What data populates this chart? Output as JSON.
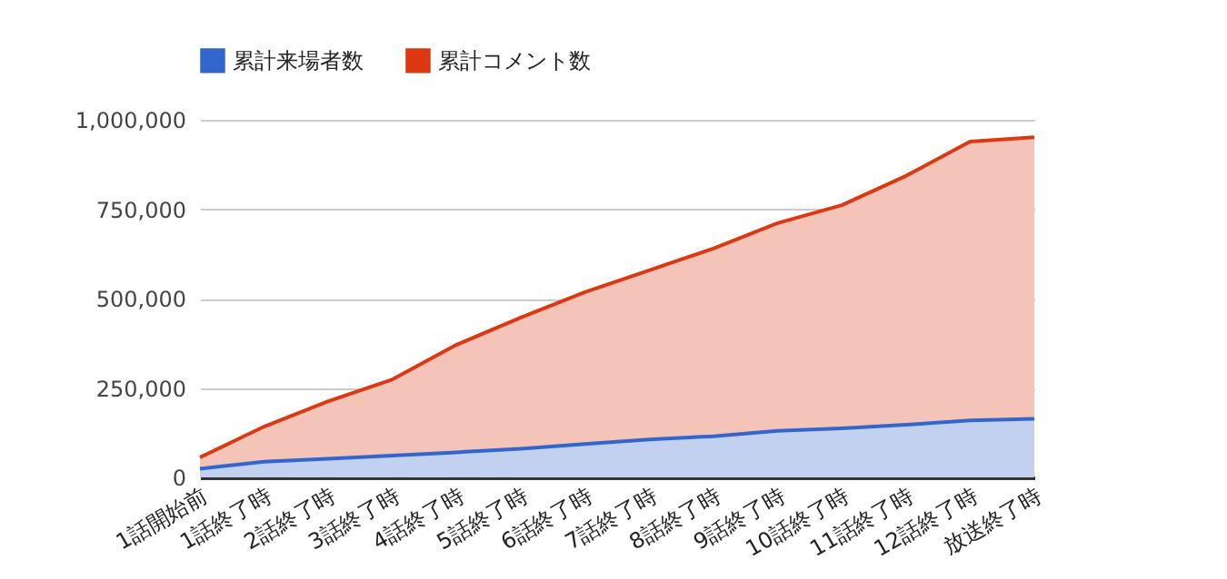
{
  "chart_data": {
    "type": "area",
    "categories": [
      "1話開始前",
      "1話終了時",
      "2話終了時",
      "3話終了時",
      "4話終了時",
      "5話終了時",
      "6話終了時",
      "7話終了時",
      "8話終了時",
      "9話終了時",
      "10話終了時",
      "11話終了時",
      "12話終了時",
      "放送終了時"
    ],
    "series": [
      {
        "name": "累計来場者数",
        "color": "#3366cc",
        "values": [
          24000,
          44000,
          52000,
          61000,
          70000,
          80000,
          93000,
          106000,
          115000,
          130000,
          137000,
          147000,
          159000,
          164000
        ]
      },
      {
        "name": "累計コメント数",
        "color": "#dc3912",
        "values": [
          56000,
          142000,
          213000,
          274000,
          371000,
          447000,
          518000,
          579000,
          640000,
          711000,
          761000,
          843000,
          939000,
          951000
        ]
      }
    ],
    "ylim": [
      0,
      1000000
    ],
    "yticks": [
      0,
      {
        "value": 250000,
        "label": "250,000"
      },
      {
        "value": 500000,
        "label": "500,000"
      },
      {
        "value": 750000,
        "label": "750,000"
      },
      {
        "value": 1000000,
        "label": "1,000,000"
      }
    ],
    "grid": "y",
    "legend": "top"
  }
}
